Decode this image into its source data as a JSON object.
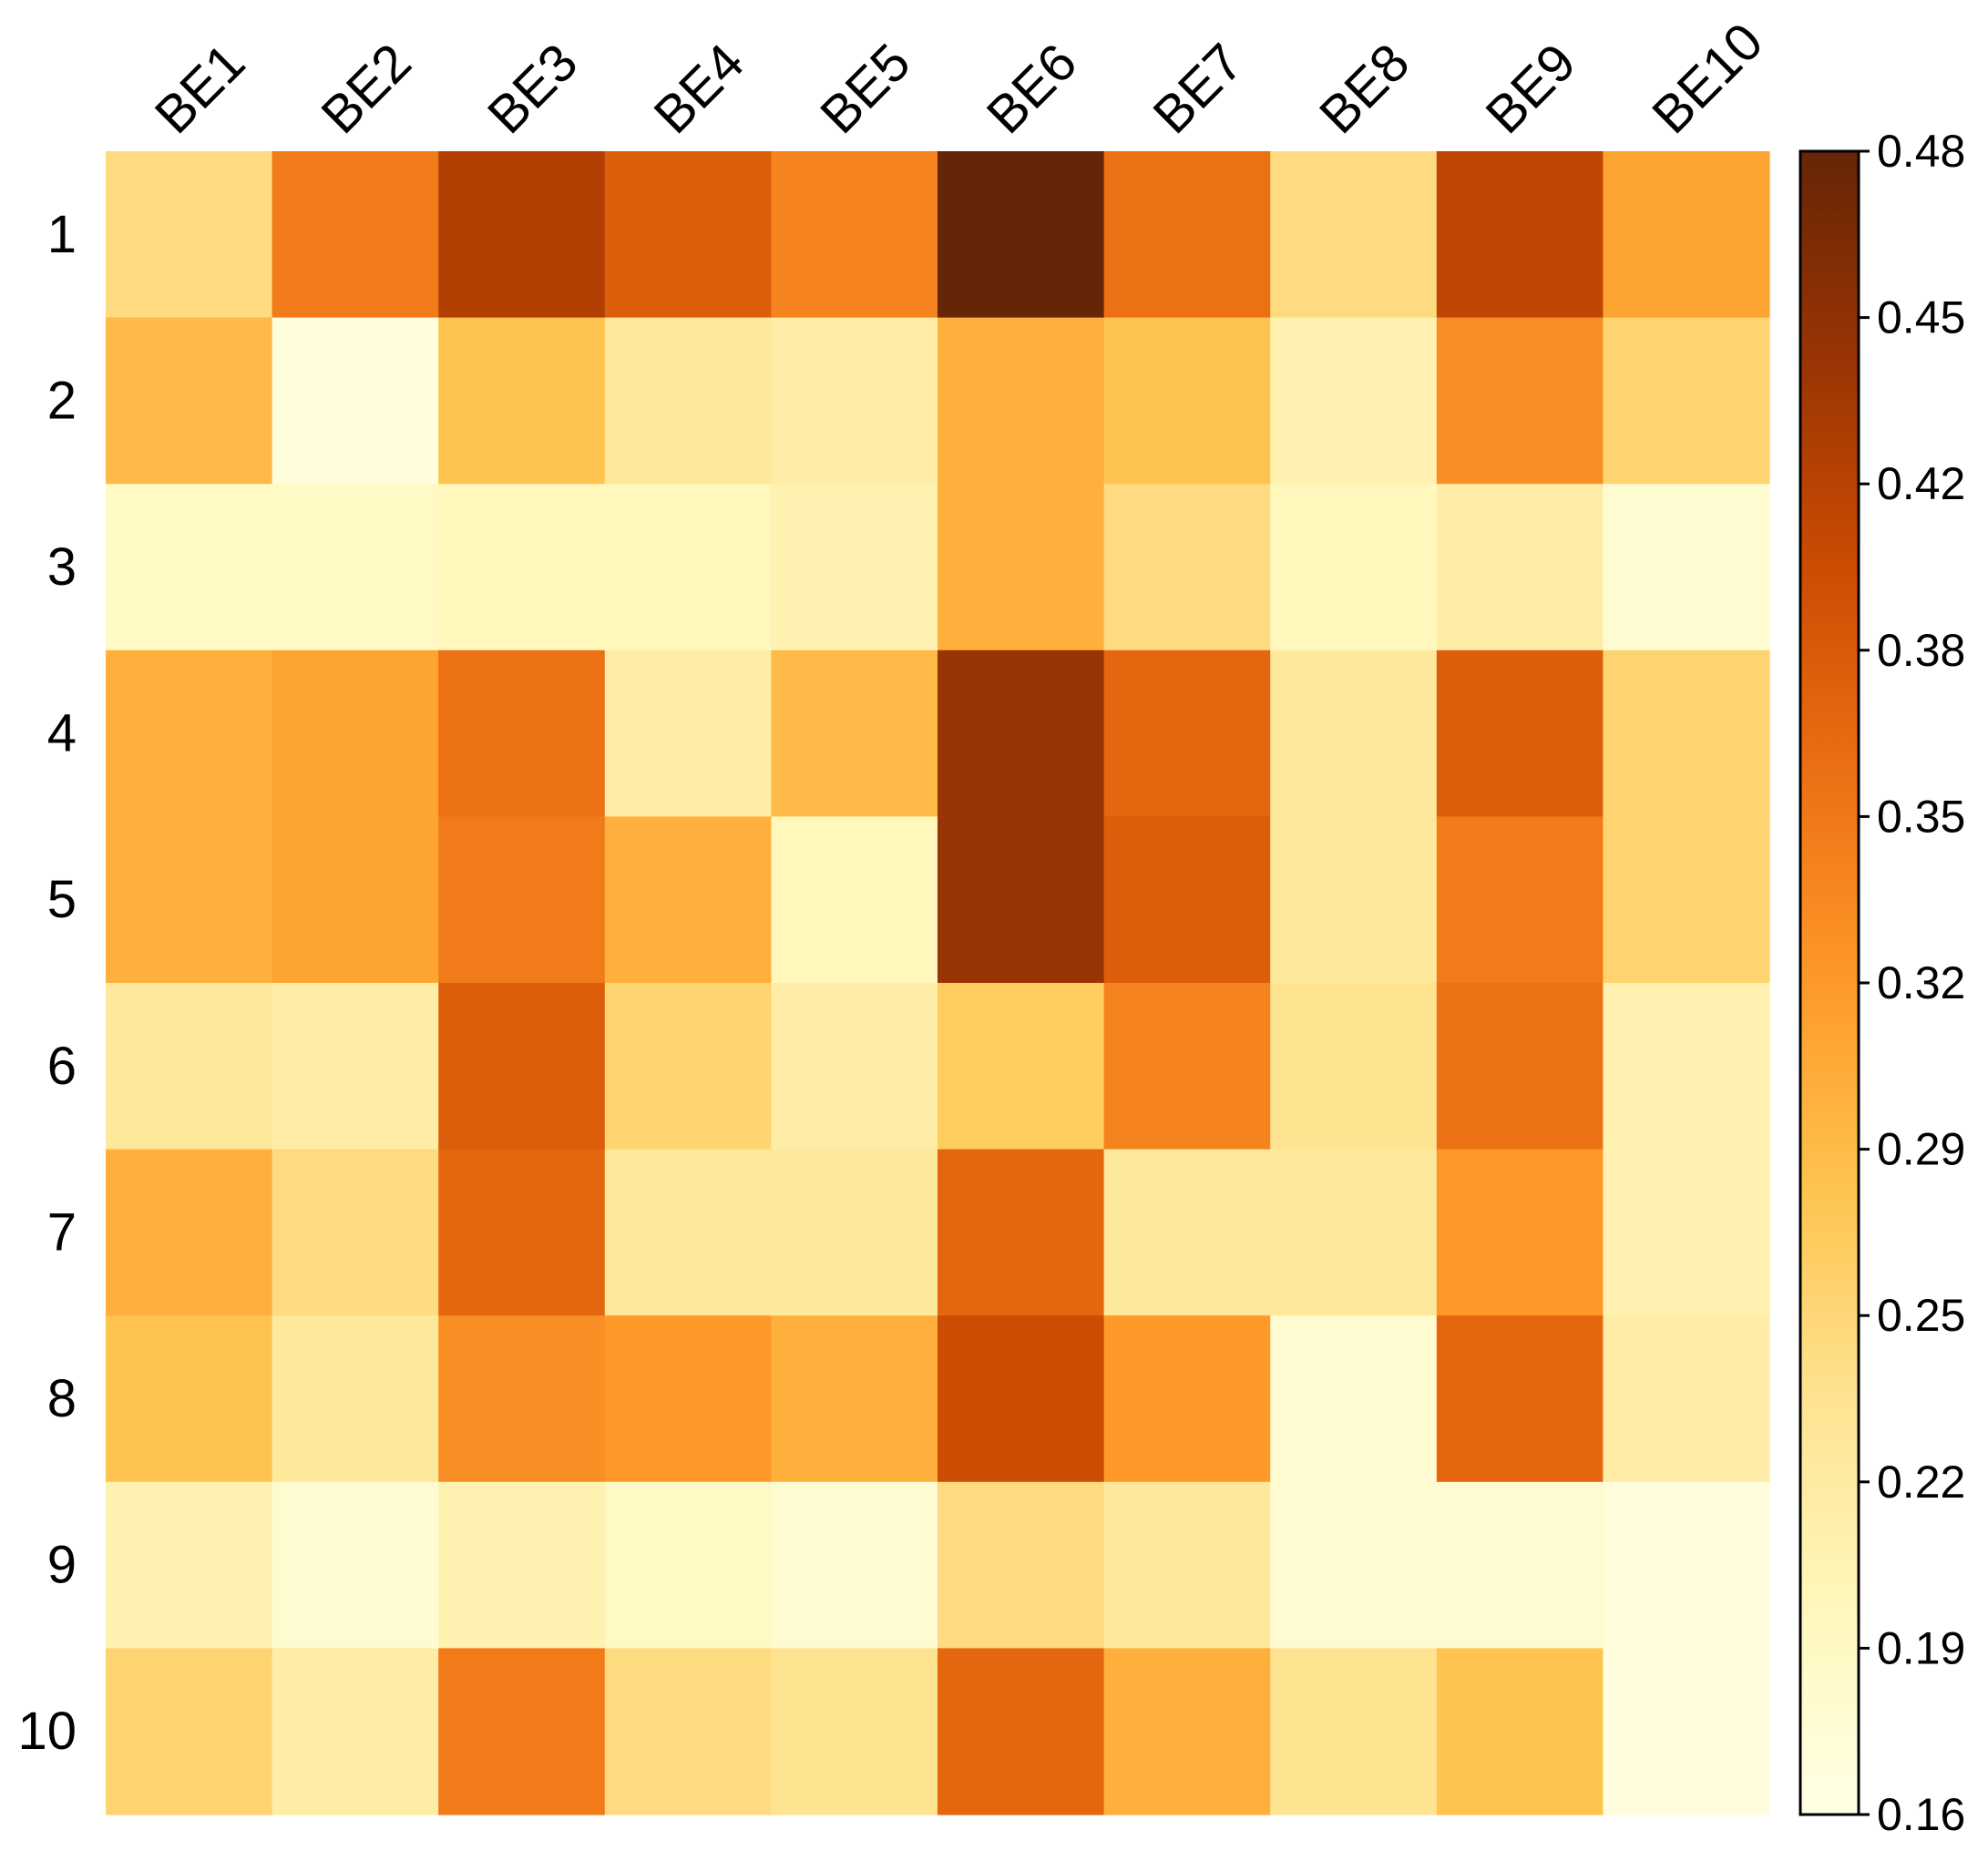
{
  "chart_data": {
    "type": "heatmap",
    "columns": [
      "BE1",
      "BE2",
      "BE3",
      "BE4",
      "BE5",
      "BE6",
      "BE7",
      "BE8",
      "BE9",
      "BE10"
    ],
    "rows": [
      "1",
      "2",
      "3",
      "4",
      "5",
      "6",
      "7",
      "8",
      "9",
      "10"
    ],
    "values": [
      [
        0.25,
        0.35,
        0.42,
        0.38,
        0.34,
        0.48,
        0.36,
        0.25,
        0.41,
        0.31
      ],
      [
        0.29,
        0.17,
        0.28,
        0.23,
        0.22,
        0.3,
        0.28,
        0.21,
        0.33,
        0.26
      ],
      [
        0.19,
        0.19,
        0.2,
        0.2,
        0.21,
        0.3,
        0.25,
        0.2,
        0.22,
        0.18
      ],
      [
        0.3,
        0.31,
        0.36,
        0.22,
        0.29,
        0.44,
        0.37,
        0.23,
        0.38,
        0.26
      ],
      [
        0.3,
        0.31,
        0.35,
        0.3,
        0.2,
        0.44,
        0.38,
        0.23,
        0.35,
        0.26
      ],
      [
        0.23,
        0.22,
        0.38,
        0.26,
        0.22,
        0.27,
        0.34,
        0.24,
        0.36,
        0.21
      ],
      [
        0.3,
        0.25,
        0.37,
        0.23,
        0.23,
        0.37,
        0.23,
        0.23,
        0.32,
        0.21
      ],
      [
        0.28,
        0.23,
        0.33,
        0.32,
        0.3,
        0.4,
        0.32,
        0.18,
        0.37,
        0.22
      ],
      [
        0.21,
        0.18,
        0.21,
        0.19,
        0.18,
        0.25,
        0.23,
        0.18,
        0.18,
        0.17
      ],
      [
        0.26,
        0.22,
        0.35,
        0.25,
        0.24,
        0.37,
        0.3,
        0.24,
        0.28,
        0.17
      ]
    ],
    "colorbar": {
      "min": 0.16,
      "max": 0.48,
      "ticks": [
        "0.48",
        "0.45",
        "0.42",
        "0.38",
        "0.35",
        "0.32",
        "0.29",
        "0.25",
        "0.22",
        "0.19",
        "0.16"
      ],
      "colors": [
        "#ffffe5",
        "#fff7bc",
        "#fee391",
        "#fec44f",
        "#fe9929",
        "#ec7014",
        "#cc4c02",
        "#993404",
        "#662506"
      ]
    },
    "title": "",
    "xlabel": "",
    "ylabel": ""
  }
}
